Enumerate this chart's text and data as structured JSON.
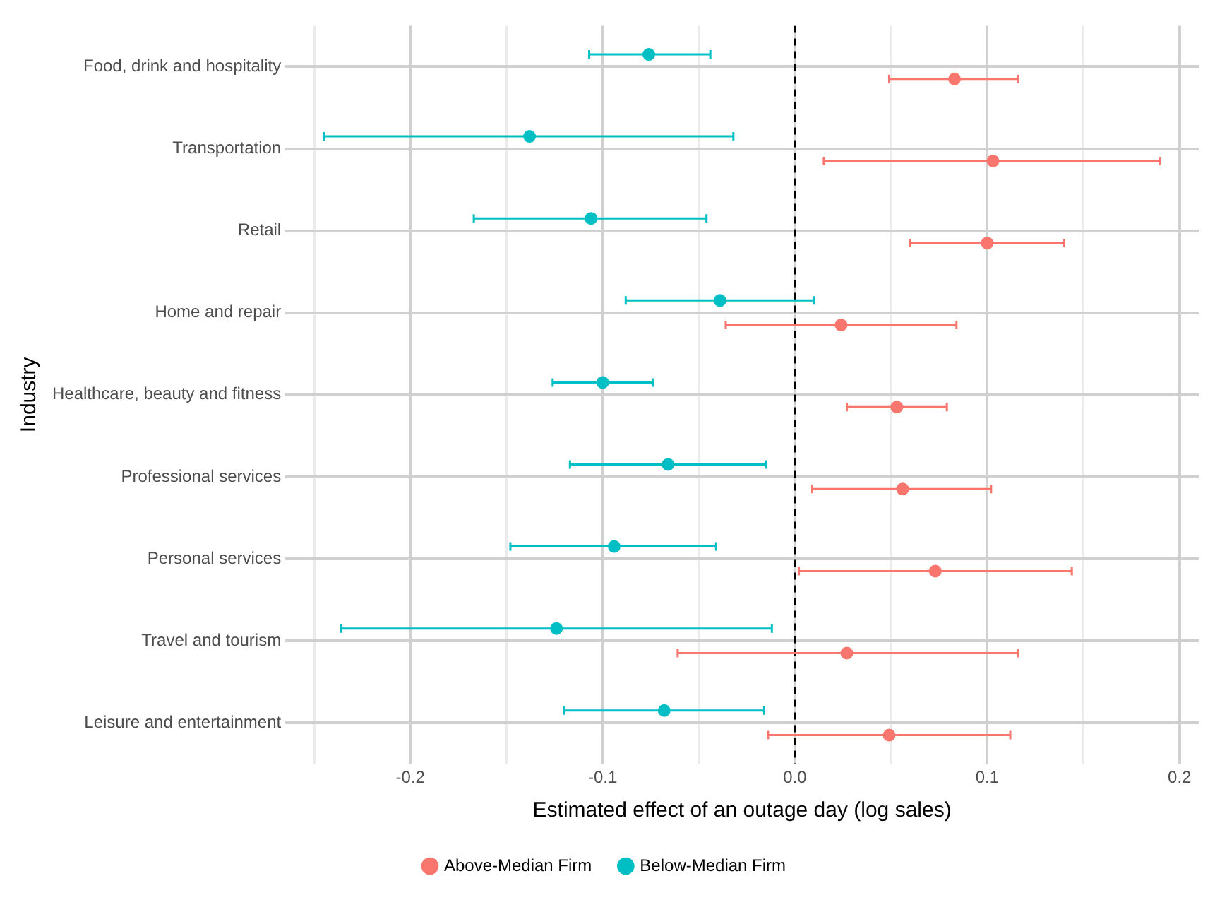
{
  "chart_data": {
    "type": "scatter",
    "orientation": "horizontal",
    "xlabel": "Estimated effect of an outage day (log sales)",
    "ylabel": "Industry",
    "categories": [
      "Food, drink and hospitality",
      "Transportation",
      "Retail",
      "Home and repair",
      "Healthcare, beauty and fitness",
      "Professional services",
      "Personal services",
      "Travel and tourism",
      "Leisure and entertainment"
    ],
    "series": [
      {
        "name": "Above-Median Firm",
        "color": "#f8766d",
        "values": [
          0.083,
          0.103,
          0.1,
          0.024,
          0.053,
          0.056,
          0.073,
          0.027,
          0.049
        ],
        "errors": [
          [
            0.049,
            0.116
          ],
          [
            0.015,
            0.19
          ],
          [
            0.06,
            0.14
          ],
          [
            -0.036,
            0.084
          ],
          [
            0.027,
            0.079
          ],
          [
            0.009,
            0.102
          ],
          [
            0.002,
            0.144
          ],
          [
            -0.061,
            0.116
          ],
          [
            -0.014,
            0.112
          ]
        ]
      },
      {
        "name": "Below-Median Firm",
        "color": "#00bfc4",
        "values": [
          -0.076,
          -0.138,
          -0.106,
          -0.039,
          -0.1,
          -0.066,
          -0.094,
          -0.124,
          -0.068
        ],
        "errors": [
          [
            -0.107,
            -0.044
          ],
          [
            -0.245,
            -0.032
          ],
          [
            -0.167,
            -0.046
          ],
          [
            -0.088,
            0.01
          ],
          [
            -0.126,
            -0.074
          ],
          [
            -0.117,
            -0.015
          ],
          [
            -0.148,
            -0.041
          ],
          [
            -0.236,
            -0.012
          ],
          [
            -0.12,
            -0.016
          ]
        ]
      }
    ],
    "xlim": [
      -0.265,
      0.21
    ],
    "xticks": [
      {
        "value": -0.25,
        "label": null
      },
      -0.2,
      {
        "value": -0.15,
        "label": null
      },
      -0.1,
      {
        "value": -0.05,
        "label": null
      },
      {
        "value": 0,
        "label": "0.0"
      },
      {
        "value": 0.05,
        "label": null
      },
      0.1,
      {
        "value": 0.15,
        "label": null
      },
      0.2
    ],
    "ref_lines": [
      {
        "axis": "x",
        "value": 0,
        "color": "#000000",
        "line_style": "dashed"
      }
    ],
    "grid": true,
    "legend": "bottom",
    "marker": "circle"
  }
}
